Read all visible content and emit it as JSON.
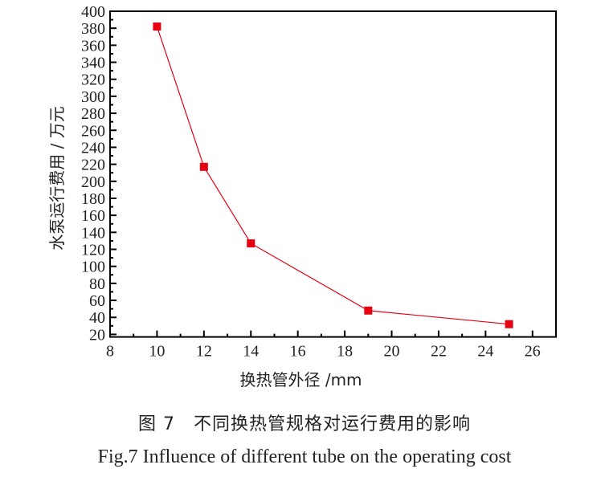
{
  "chart_data": {
    "type": "line",
    "xlabel": "换热管外径 /mm",
    "ylabel": "水泵运行费用 / 万元",
    "xlim": [
      8,
      27
    ],
    "ylim": [
      17,
      400
    ],
    "xticks": [
      8,
      10,
      12,
      14,
      16,
      18,
      20,
      22,
      24,
      26
    ],
    "yticks": [
      20,
      40,
      60,
      80,
      100,
      120,
      140,
      160,
      180,
      200,
      220,
      240,
      260,
      280,
      300,
      320,
      340,
      360,
      380,
      400
    ],
    "x": [
      10,
      12,
      14,
      19,
      25
    ],
    "values": [
      382,
      217,
      127,
      48,
      32
    ],
    "marker": "square",
    "color": "#e60012",
    "grid": false
  },
  "caption": {
    "cn": "图 7　不同换热管规格对运行费用的影响",
    "en": "Fig.7  Influence of different tube on the operating cost"
  }
}
